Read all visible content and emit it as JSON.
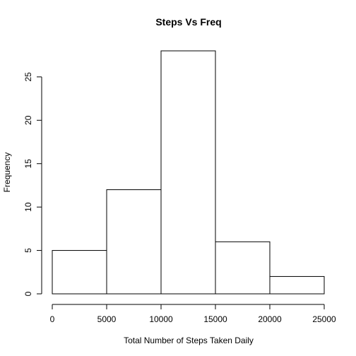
{
  "chart_data": {
    "type": "bar",
    "title": "Steps Vs Freq",
    "xlabel": "Total Number of Steps Taken Daily",
    "ylabel": "Frequency",
    "bins": [
      {
        "start": 0,
        "end": 5000,
        "value": 5
      },
      {
        "start": 5000,
        "end": 10000,
        "value": 12
      },
      {
        "start": 10000,
        "end": 15000,
        "value": 28
      },
      {
        "start": 15000,
        "end": 20000,
        "value": 6
      },
      {
        "start": 20000,
        "end": 25000,
        "value": 2
      }
    ],
    "xlim": [
      0,
      25000
    ],
    "ylim": [
      0,
      28
    ],
    "x_ticks": [
      0,
      5000,
      10000,
      15000,
      20000,
      25000
    ],
    "y_ticks": [
      0,
      5,
      10,
      15,
      20,
      25
    ],
    "grid": false
  }
}
